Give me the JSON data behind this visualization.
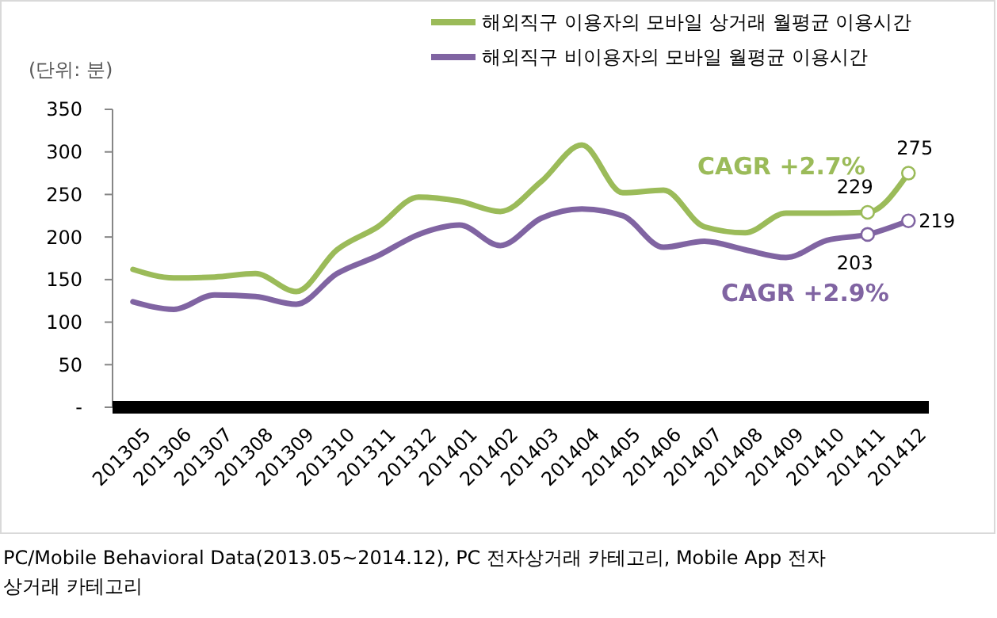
{
  "chart_data": {
    "type": "line",
    "ylabel": "(단위: 분)",
    "categories": [
      "201305",
      "201306",
      "201307",
      "201308",
      "201309",
      "201310",
      "201311",
      "201312",
      "201401",
      "201402",
      "201403",
      "201404",
      "201405",
      "201406",
      "201407",
      "201408",
      "201409",
      "201410",
      "201411",
      "201412"
    ],
    "series": [
      {
        "name": "해외직구 이용자의 모바일 상거래 월평균 이용시간",
        "color": "#9bbb59",
        "values": [
          162,
          152,
          153,
          157,
          136,
          185,
          212,
          247,
          242,
          230,
          265,
          308,
          252,
          255,
          212,
          205,
          228,
          228,
          229,
          275
        ],
        "value_labels": [
          null,
          null,
          null,
          null,
          null,
          null,
          null,
          null,
          null,
          null,
          null,
          null,
          null,
          null,
          null,
          null,
          null,
          null,
          "229",
          "275"
        ]
      },
      {
        "name": "해외직구 비이용자의 모바일 월평균 이용시간",
        "color": "#8064a2",
        "values": [
          124,
          115,
          132,
          130,
          121,
          157,
          178,
          203,
          214,
          190,
          222,
          233,
          225,
          188,
          195,
          185,
          176,
          196,
          203,
          219
        ],
        "value_labels": [
          null,
          null,
          null,
          null,
          null,
          null,
          null,
          null,
          null,
          null,
          null,
          null,
          null,
          null,
          null,
          null,
          null,
          null,
          "203",
          "219"
        ]
      }
    ],
    "ylim": [
      0,
      350
    ],
    "yticks": [
      {
        "value": 0,
        "label": "-"
      },
      50,
      100,
      150,
      200,
      250,
      300,
      350
    ],
    "grid": false,
    "legend": "top right",
    "annotations": [
      "CAGR +2.7%",
      "CAGR +2.9%",
      "PC/Mobile Behavioral Data(2013.05~2014.12), PC 전자상거래 카테고리, Mobile App 전자상거래 카테고리"
    ]
  }
}
